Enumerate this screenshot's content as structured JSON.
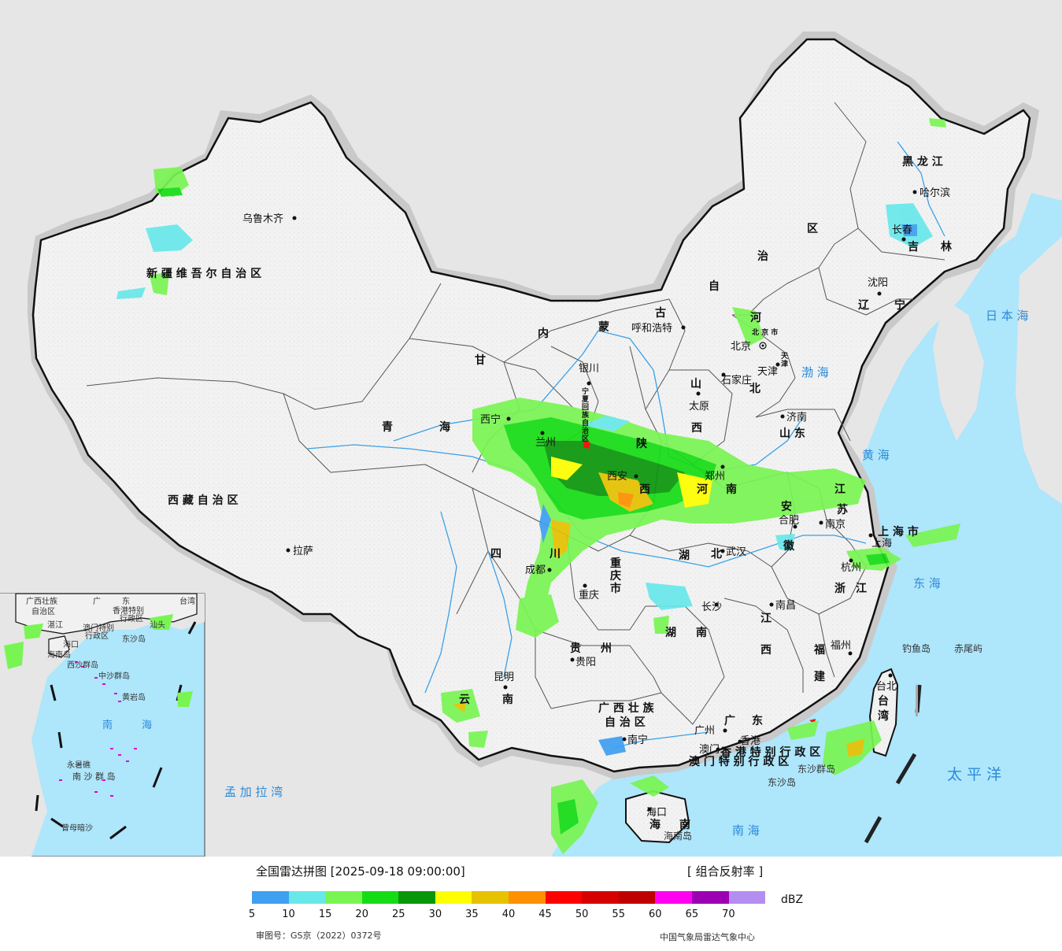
{
  "colors": {
    "ocean": "#aee6fb",
    "foreign_land": "#e6e6e6",
    "china_land": "#f1f1f1",
    "halo": "#c9c9c9",
    "border": "#111111",
    "province_line": "#555555",
    "river": "#3aa0e6"
  },
  "labels": {
    "provinces": [
      "新 疆 维 吾 尔 自 治 区",
      "西 藏 自 治 区",
      "青",
      "海",
      "甘",
      "内",
      "蒙",
      "古",
      "自",
      "治",
      "区",
      "黑 龙 江",
      "吉",
      "林",
      "辽",
      "宁",
      "河",
      "北",
      "山",
      "西",
      "山 东",
      "陕",
      "西",
      "河",
      "南",
      "江",
      "苏",
      "安",
      "徽",
      "湖",
      "北",
      "四",
      "川",
      "重",
      "庆",
      "市",
      "贵",
      "州",
      "云",
      "南",
      "湖",
      "南",
      "江",
      "西",
      "浙",
      "江",
      "福",
      "建",
      "广 西 壮 族",
      "自 治 区",
      "广",
      "东",
      "海",
      "南",
      "台",
      "湾",
      "上 海 市",
      "宁",
      "夏",
      "回",
      "族",
      "自",
      "治",
      "区",
      "香 港 特 别 行 政 区",
      "澳 门 特 别 行 政 区",
      "天",
      "津",
      "北 京 市"
    ],
    "cities": [
      "乌鲁木齐",
      "拉萨",
      "西宁",
      "兰州",
      "银川",
      "呼和浩特",
      "北京",
      "天津",
      "石家庄",
      "太原",
      "济南",
      "郑州",
      "西安",
      "成都",
      "重庆",
      "贵阳",
      "昆明",
      "长沙",
      "武汉",
      "合肥",
      "南京",
      "上海",
      "杭州",
      "南昌",
      "福州",
      "台北",
      "广州",
      "澳门",
      "香港",
      "南宁",
      "海口",
      "哈尔滨",
      "长春",
      "沈阳"
    ],
    "seas": [
      "日 本 海",
      "渤 海",
      "黄 海",
      "东 海",
      "南 海",
      "太 平 洋",
      "孟 加 拉 湾"
    ],
    "islands": [
      "钓鱼岛",
      "赤尾屿",
      "东沙群岛",
      "东沙岛",
      "海南岛"
    ],
    "inset": [
      "广西壮族",
      "自治区",
      "广",
      "东",
      "香港特别",
      "行政区",
      "澳门特别",
      "行政区",
      "台湾",
      "海口",
      "西沙群岛",
      "中沙群岛",
      "黄岩岛",
      "南",
      "海",
      "永暑礁",
      "南 沙 群 岛",
      "曾母暗沙",
      "东沙岛",
      "海南岛",
      "湛江",
      "汕头"
    ]
  },
  "legend": {
    "title": "全国雷达拼图 [2025-09-18 09:00:00]",
    "product": "[ 组合反射率 ]",
    "unit": "dBZ",
    "approval": "审图号：GS京（2022）0372号",
    "source": "中国气象局雷达气象中心",
    "ramp_colors": [
      "#3f9ff0",
      "#69e8ea",
      "#79f553",
      "#15dd15",
      "#0a960a",
      "#ffff00",
      "#e6c200",
      "#ff9000",
      "#ff0000",
      "#d60000",
      "#c00000",
      "#ff00f0",
      "#9c00b4",
      "#b48df0"
    ],
    "ticks": [
      "5",
      "10",
      "15",
      "20",
      "25",
      "30",
      "35",
      "40",
      "45",
      "50",
      "55",
      "60",
      "65",
      "70"
    ]
  }
}
